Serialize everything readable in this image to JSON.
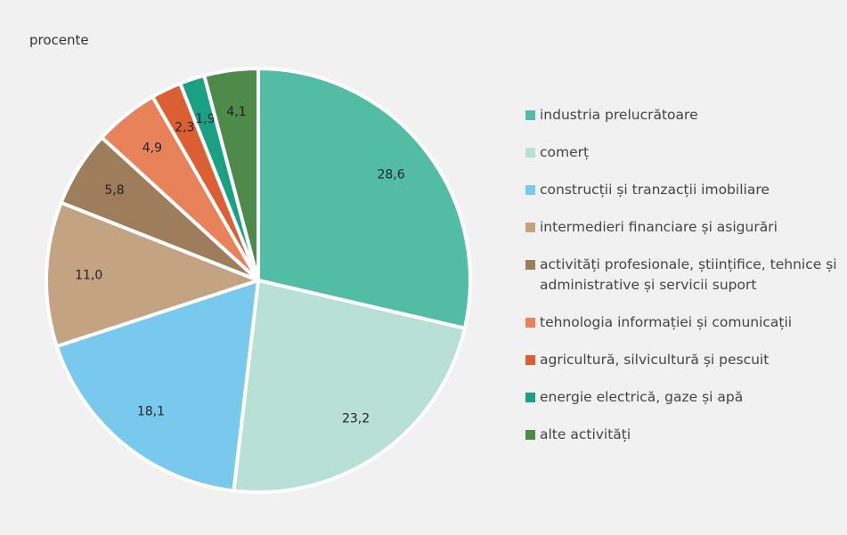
{
  "chart_data": {
    "type": "pie",
    "subtitle": "procente",
    "categories": [
      "industria prelucrătoare",
      "comerț",
      "construcții și tranzacții imobiliare",
      "intermedieri financiare și asigurări",
      "activități profesionale, științifice, tehnice și administrative și servicii suport",
      "tehnologia informației și comunicații",
      "agricultură, silvicultură și pescuit",
      "energie electrică, gaze și apă",
      "alte activități"
    ],
    "values": [
      28.6,
      23.2,
      18.1,
      11.0,
      5.8,
      4.9,
      2.3,
      1.9,
      4.1
    ],
    "value_labels": [
      "28,6",
      "23,2",
      "18,1",
      "11,0",
      "5,8",
      "4,9",
      "2,3",
      "1,9",
      "4,1"
    ],
    "colors": [
      "#52bca5",
      "#b9e0d6",
      "#78c9ec",
      "#c4a382",
      "#9e7e5a",
      "#e8825a",
      "#dc5f33",
      "#1aa184",
      "#4e8a4a"
    ],
    "legend": "right"
  }
}
